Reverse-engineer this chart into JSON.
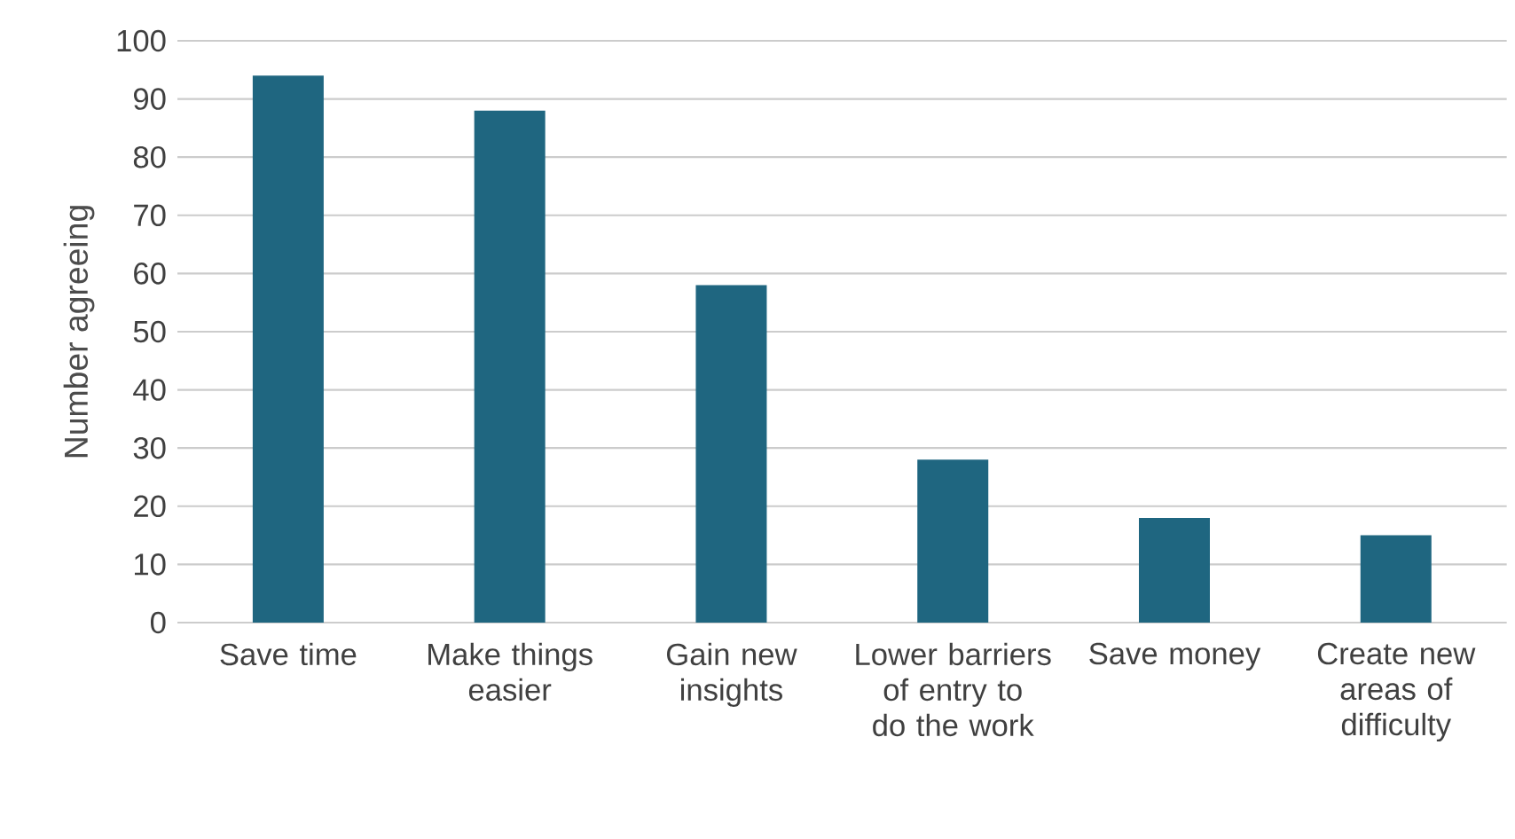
{
  "chart_data": {
    "type": "bar",
    "ylabel": "Number agreeing",
    "categories": [
      "Save time",
      "Make things easier",
      "Gain new insights",
      "Lower barriers of entry to do the work",
      "Save money",
      "Create new areas of difficulty"
    ],
    "values": [
      94,
      88,
      58,
      28,
      18,
      15
    ],
    "color": "#1f6680",
    "ylim": [
      0,
      100
    ],
    "yticks": [
      0,
      10,
      20,
      30,
      40,
      50,
      60,
      70,
      80,
      90,
      100
    ],
    "grid": "y"
  }
}
